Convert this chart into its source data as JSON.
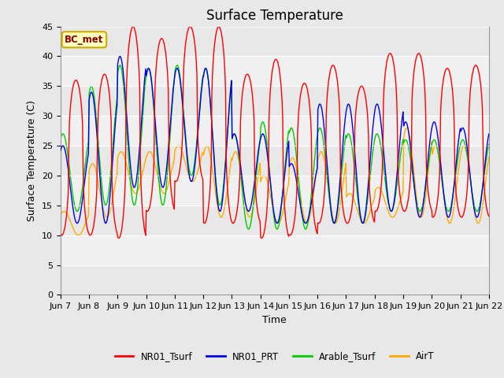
{
  "title": "Surface Temperature",
  "ylabel": "Surface Temperature (C)",
  "xlabel": "Time",
  "ylim": [
    0,
    45
  ],
  "yticks": [
    0,
    5,
    10,
    15,
    20,
    25,
    30,
    35,
    40,
    45
  ],
  "annotation": "BC_met",
  "legend": [
    "NR01_Tsurf",
    "NR01_PRT",
    "Arable_Tsurf",
    "AirT"
  ],
  "colors": [
    "#ff0000",
    "#0000ee",
    "#00cc00",
    "#ffaa00"
  ],
  "background_color": "#e8e8e8",
  "band_color": "#f0f0f0",
  "figsize": [
    6.4,
    4.8
  ],
  "dpi": 100,
  "x_tick_labels": [
    "Jun 7",
    "Jun 8",
    "Jun 9",
    "Jun 10",
    "Jun 11",
    "Jun 12",
    "Jun 13",
    "Jun 14",
    "Jun 15",
    "Jun 16",
    "Jun 17",
    "Jun 18",
    "Jun 19",
    "Jun 20",
    "Jun 21",
    "Jun 22"
  ],
  "title_fontsize": 12,
  "tick_fontsize": 8,
  "label_fontsize": 9,
  "n_days": 15,
  "NR01_peaks": [
    36,
    37,
    45,
    43,
    45,
    45,
    37,
    39.5,
    35.5,
    38.5,
    35,
    40.5,
    40.5,
    38,
    38.5
  ],
  "NR01_mins": [
    10,
    10,
    9.5,
    14,
    19,
    12,
    12,
    9.5,
    10,
    12,
    12,
    14,
    14,
    13,
    13
  ],
  "PRT_peaks": [
    25,
    34,
    40,
    38,
    38,
    38,
    27,
    27,
    22,
    32,
    32,
    32,
    29,
    29,
    28
  ],
  "PRT_mins": [
    12,
    12,
    18,
    18,
    19,
    14,
    14,
    12,
    12,
    12,
    12,
    14,
    13,
    13,
    13
  ],
  "Arable_peaks": [
    27,
    35,
    38.5,
    38,
    38.5,
    38,
    27,
    29,
    28,
    28,
    27,
    27,
    26,
    26,
    26
  ],
  "Arable_mins": [
    14,
    15,
    15,
    15,
    20,
    15,
    11,
    11,
    11,
    12,
    12,
    14,
    14,
    14,
    14
  ],
  "Air_peaks": [
    14,
    22,
    24,
    24,
    25,
    25,
    24,
    20,
    23,
    24,
    17,
    18,
    28,
    25,
    25
  ],
  "Air_mins": [
    10,
    13,
    17,
    17,
    19,
    13,
    13,
    12,
    12,
    12,
    12,
    13,
    13,
    12,
    12
  ]
}
